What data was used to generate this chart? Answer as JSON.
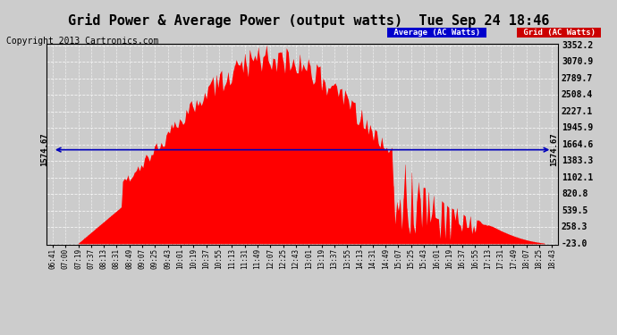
{
  "title": "Grid Power & Average Power (output watts)  Tue Sep 24 18:46",
  "copyright": "Copyright 2013 Cartronics.com",
  "yticks": [
    -23.0,
    258.3,
    539.5,
    820.8,
    1102.1,
    1383.3,
    1664.6,
    1945.9,
    2227.1,
    2508.4,
    2789.7,
    3070.9,
    3352.2
  ],
  "ytick_labels": [
    "-23.0",
    "258.3",
    "539.5",
    "820.8",
    "1102.1",
    "1383.3",
    "1664.6",
    "1945.9",
    "2227.1",
    "2508.4",
    "2789.7",
    "3070.9",
    "3352.2"
  ],
  "ymin": -23.0,
  "ymax": 3352.2,
  "avg_line_value": 1574.67,
  "avg_label": "1574.67",
  "bg_color": "#cccccc",
  "plot_bg_color": "#cccccc",
  "bar_color": "#ff0000",
  "avg_line_color": "#0000bb",
  "grid_color": "#aaaaaa",
  "legend_avg_bg": "#0000cc",
  "legend_grid_bg": "#cc0000",
  "title_fontsize": 11,
  "copyright_fontsize": 7,
  "xtick_labels": [
    "06:41",
    "07:00",
    "07:19",
    "07:37",
    "08:13",
    "08:31",
    "08:49",
    "09:07",
    "09:25",
    "09:43",
    "10:01",
    "10:19",
    "10:37",
    "10:55",
    "11:13",
    "11:31",
    "11:49",
    "12:07",
    "12:25",
    "12:43",
    "13:01",
    "13:19",
    "13:37",
    "13:55",
    "14:13",
    "14:31",
    "14:49",
    "15:07",
    "15:25",
    "15:43",
    "16:01",
    "16:19",
    "16:37",
    "16:55",
    "17:13",
    "17:31",
    "17:49",
    "18:07",
    "18:25",
    "18:43"
  ],
  "num_bars": 300
}
